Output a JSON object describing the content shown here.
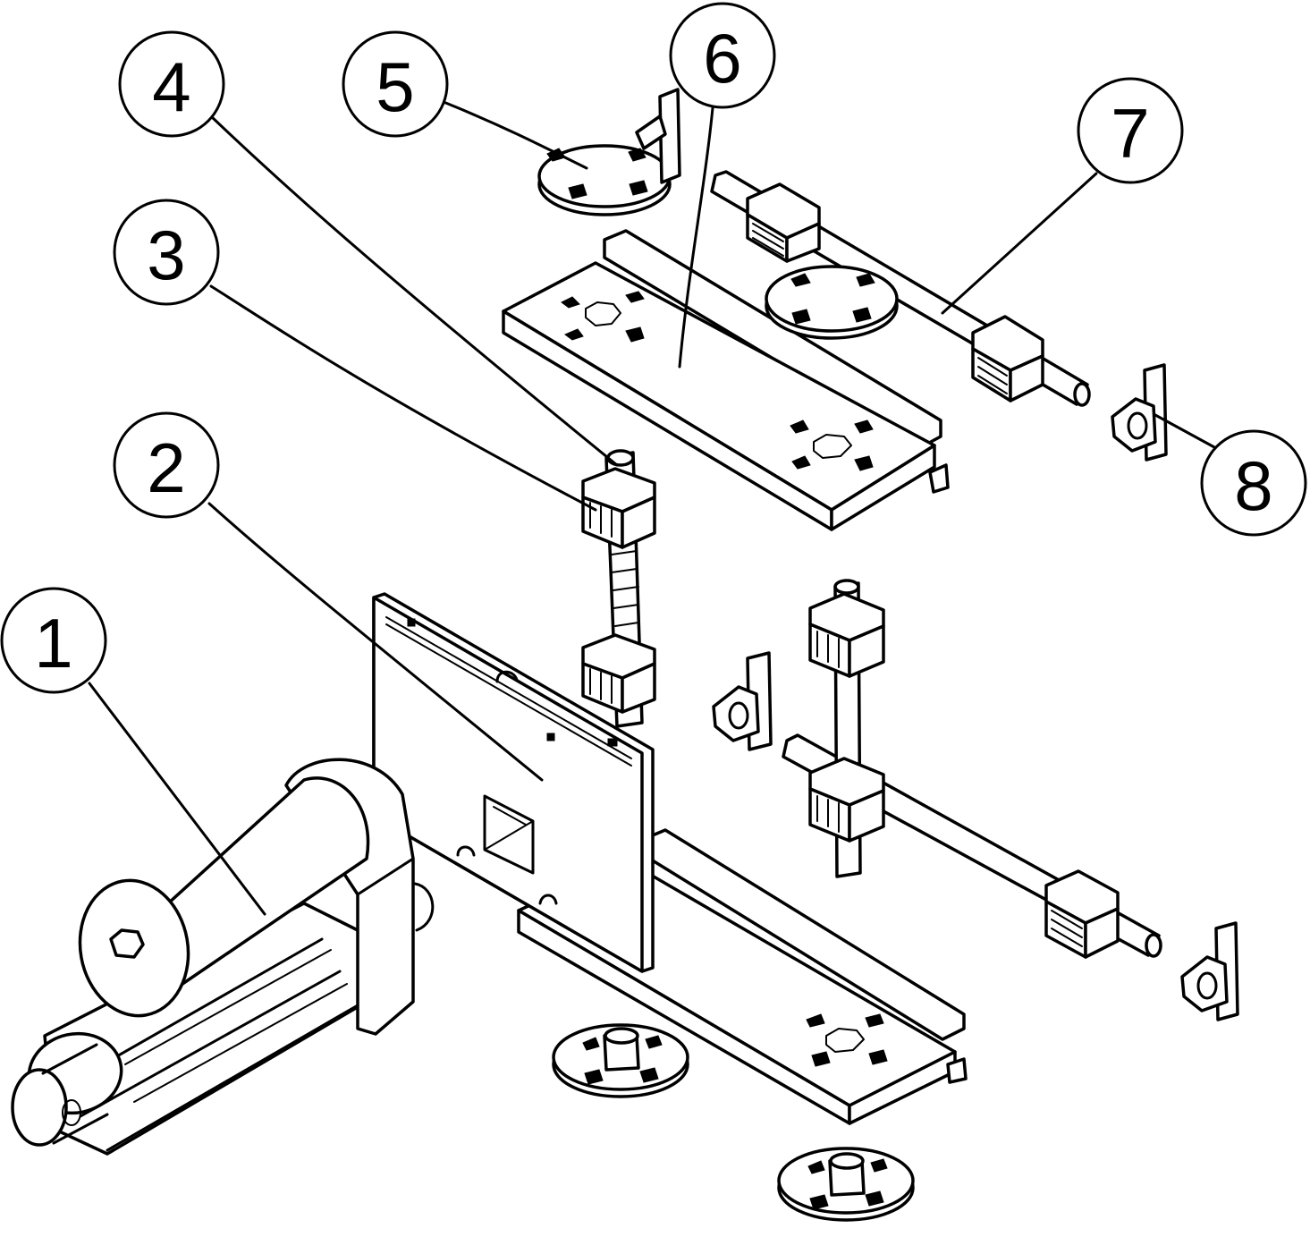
{
  "diagram": {
    "colors": {
      "ink": "#000000",
      "paper": "#ffffff"
    },
    "callouts": [
      {
        "id": "1",
        "label": "1"
      },
      {
        "id": "2",
        "label": "2"
      },
      {
        "id": "3",
        "label": "3"
      },
      {
        "id": "4",
        "label": "4"
      },
      {
        "id": "5",
        "label": "5"
      },
      {
        "id": "6",
        "label": "6"
      },
      {
        "id": "7",
        "label": "7"
      },
      {
        "id": "8",
        "label": "8"
      }
    ]
  }
}
